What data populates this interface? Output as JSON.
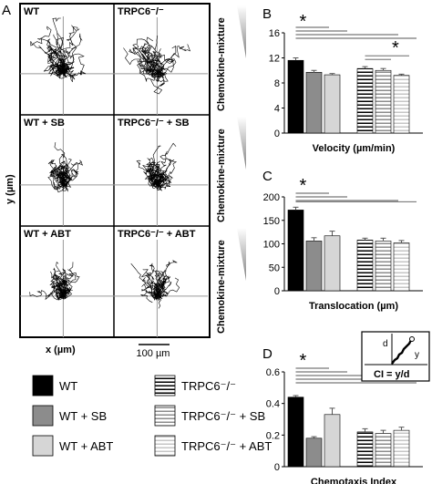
{
  "panels": {
    "A": "A",
    "B": "B",
    "C": "C",
    "D": "D"
  },
  "trajectory_panel": {
    "cells": [
      {
        "title": "WT"
      },
      {
        "title": "TRPC6⁻/⁻"
      },
      {
        "title": "WT + SB"
      },
      {
        "title": "TRPC6⁻/⁻ + SB"
      },
      {
        "title": "WT + ABT"
      },
      {
        "title": "TRPC6⁻/⁻ + ABT"
      }
    ],
    "gradient_label": "Chemokine-mixture",
    "x_axis_label": "x (µm)",
    "y_axis_label": "y (µm)",
    "scale_bar_label": "100 µm"
  },
  "legend": [
    {
      "label": "WT",
      "fill": "#000000",
      "pattern": "solid"
    },
    {
      "label": "TRPC6⁻/⁻",
      "fill": "#ffffff",
      "pattern": "stripes-dark"
    },
    {
      "label": "WT + SB",
      "fill": "#8c8c8c",
      "pattern": "solid"
    },
    {
      "label": "TRPC6⁻/⁻ + SB",
      "fill": "#ffffff",
      "pattern": "stripes-mid"
    },
    {
      "label": "WT + ABT",
      "fill": "#d6d6d6",
      "pattern": "solid"
    },
    {
      "label": "TRPC6⁻/⁻ + ABT",
      "fill": "#ffffff",
      "pattern": "stripes-light"
    }
  ],
  "ci_inset": {
    "d": "d",
    "y": "y",
    "formula": "CI = y/d"
  },
  "chart_data": [
    {
      "type": "bar",
      "xlabel": "Velocity (µm/min)",
      "ylim": [
        0,
        16
      ],
      "yticks": [
        "0",
        "4",
        "8",
        "12",
        "16"
      ],
      "values": [
        11.6,
        9.7,
        9.3,
        10.3,
        10.0,
        9.2
      ],
      "errors": [
        0.4,
        0.3,
        0.2,
        0.3,
        0.3,
        0.2
      ],
      "significance": "*"
    },
    {
      "type": "bar",
      "xlabel": "Translocation (µm)",
      "ylim": [
        0,
        200
      ],
      "yticks": [
        "0",
        "50",
        "100",
        "150",
        "200"
      ],
      "values": [
        172,
        106,
        117,
        108,
        106,
        102
      ],
      "errors": [
        6,
        7,
        10,
        4,
        6,
        5
      ],
      "significance": "*"
    },
    {
      "type": "bar",
      "xlabel": "Chemotaxis Index",
      "ylim": [
        0,
        0.6
      ],
      "yticks": [
        "0",
        "0.2",
        "0.4",
        "0.6"
      ],
      "values": [
        0.44,
        0.18,
        0.33,
        0.22,
        0.21,
        0.23
      ],
      "errors": [
        0.01,
        0.01,
        0.04,
        0.02,
        0.02,
        0.02
      ],
      "significance": "*"
    }
  ]
}
